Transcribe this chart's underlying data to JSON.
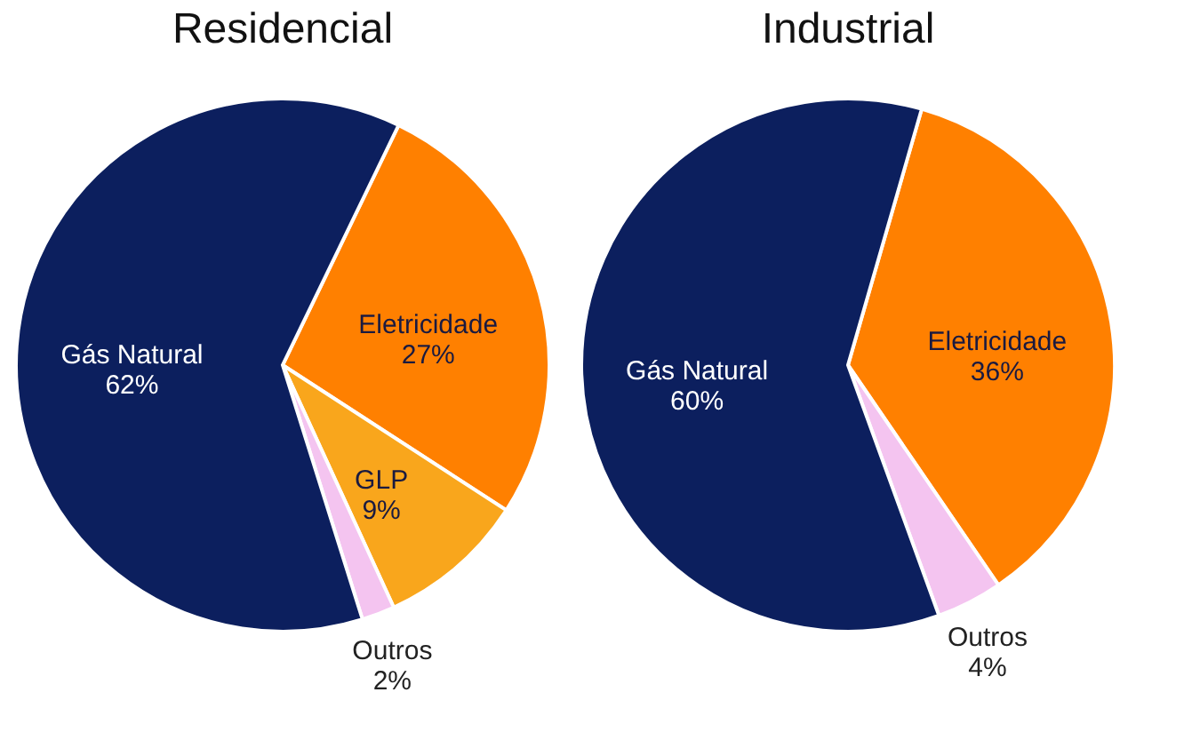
{
  "chart_data": [
    {
      "type": "pie",
      "title": "Residencial",
      "categories": [
        "Eletricidade",
        "GLP",
        "Outros",
        "Gás Natural"
      ],
      "values": [
        27,
        9,
        2,
        62
      ],
      "colors": [
        "#ff8000",
        "#f9a61c",
        "#f4c4f0",
        "#0c1f5e"
      ],
      "value_labels": [
        "27%",
        "9%",
        "2%",
        "62%"
      ],
      "legend": false
    },
    {
      "type": "pie",
      "title": "Industrial",
      "categories": [
        "Eletricidade",
        "Outros",
        "Gás Natural"
      ],
      "values": [
        36,
        4,
        60
      ],
      "colors": [
        "#ff8000",
        "#f4c4f0",
        "#0c1f5e"
      ],
      "value_labels": [
        "36%",
        "4%",
        "60%"
      ],
      "legend": false
    }
  ]
}
